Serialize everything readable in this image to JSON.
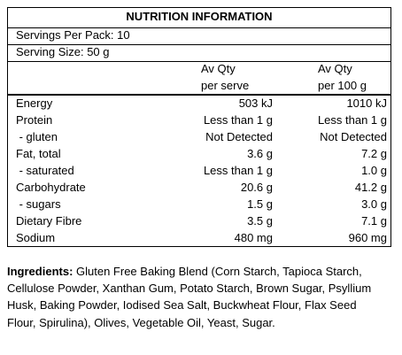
{
  "panel": {
    "title": "NUTRITION INFORMATION",
    "servings_per_pack": "Servings Per Pack: 10",
    "serving_size": "Serving Size: 50 g",
    "headers": {
      "per_serve_line1": "Av Qty",
      "per_serve_line2": "per serve",
      "per_100g_line1": "Av Qty",
      "per_100g_line2": "per 100 g"
    },
    "rows": [
      {
        "label": "Energy",
        "per_serve": "503 kJ",
        "per_100g": "1010 kJ"
      },
      {
        "label": "Protein",
        "per_serve": "Less than 1 g",
        "per_100g": "Less than 1 g"
      },
      {
        "label": " - gluten",
        "per_serve": "Not Detected",
        "per_100g": "Not Detected"
      },
      {
        "label": "Fat, total",
        "per_serve": "3.6 g",
        "per_100g": "7.2 g"
      },
      {
        "label": " - saturated",
        "per_serve": "Less than 1 g",
        "per_100g": "1.0 g"
      },
      {
        "label": "Carbohydrate",
        "per_serve": "20.6 g",
        "per_100g": "41.2 g"
      },
      {
        "label": " - sugars",
        "per_serve": "1.5 g",
        "per_100g": "3.0 g"
      },
      {
        "label": "Dietary Fibre",
        "per_serve": "3.5 g",
        "per_100g": "7.1 g"
      },
      {
        "label": "Sodium",
        "per_serve": "480 mg",
        "per_100g": "960 mg"
      }
    ]
  },
  "ingredients": {
    "heading": "Ingredients:",
    "text": " Gluten Free Baking Blend (Corn Starch, Tapioca Starch, Cellulose Powder, Xanthan Gum, Potato Starch, Brown Sugar, Psyllium Husk, Baking Powder, Iodised Sea Salt, Buckwheat Flour, Flax Seed Flour, Spirulina), Olives, Vegetable Oil, Yeast, Sugar."
  }
}
